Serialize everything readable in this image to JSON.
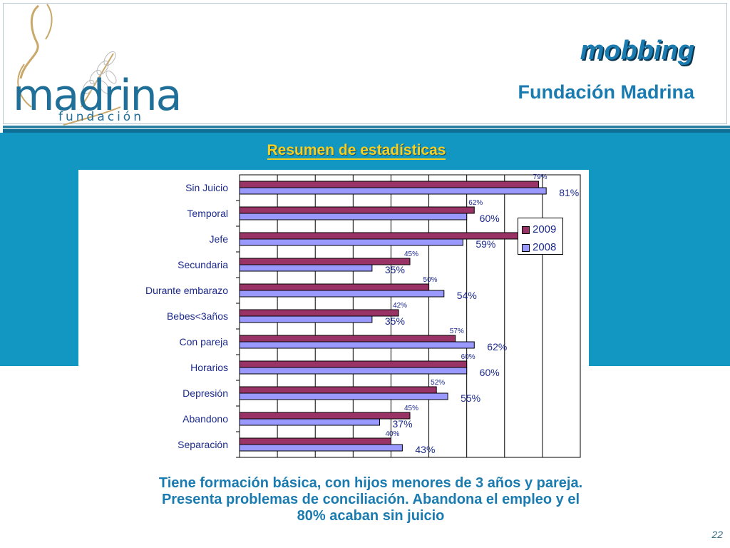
{
  "header": {
    "logo_word": "madrina",
    "logo_sub": "fundación",
    "title": "mobbing",
    "subtitle": "Fundación Madrina"
  },
  "chart_data": {
    "type": "bar",
    "orientation": "horizontal",
    "title": "Resumen de estadísticas",
    "categories": [
      "Sin Juicio",
      "Temporal",
      "Jefe",
      "Secundaria",
      "Durante embarazo",
      "Bebes<3años",
      "Con pareja",
      "Horarios",
      "Depresión",
      "Abandono",
      "Separación"
    ],
    "series": [
      {
        "name": "2009",
        "color": "#993366",
        "values": [
          79,
          62,
          75,
          45,
          50,
          42,
          57,
          60,
          52,
          45,
          40
        ],
        "labels": [
          "79%",
          "62%",
          "75%",
          "45%",
          "50%",
          "42%",
          "57%",
          "60%",
          "52%",
          "45%",
          "40%"
        ]
      },
      {
        "name": "2008",
        "color": "#9999ff",
        "values": [
          81,
          60,
          59,
          35,
          54,
          35,
          62,
          60,
          55,
          37,
          43
        ],
        "labels": [
          "81%",
          "60%",
          "59%",
          "35%",
          "54%",
          "35%",
          "62%",
          "60%",
          "55%",
          "37%",
          "43%"
        ]
      }
    ],
    "xlim": [
      0,
      90
    ],
    "grid": true,
    "legend": "right"
  },
  "summary": {
    "line1": "Tiene formación básica, con hijos menores de 3 años y pareja.",
    "line2": "Presenta problemas de conciliación. Abandona el empleo y el",
    "line3": "80% acaban sin juicio"
  },
  "page_number": "22"
}
